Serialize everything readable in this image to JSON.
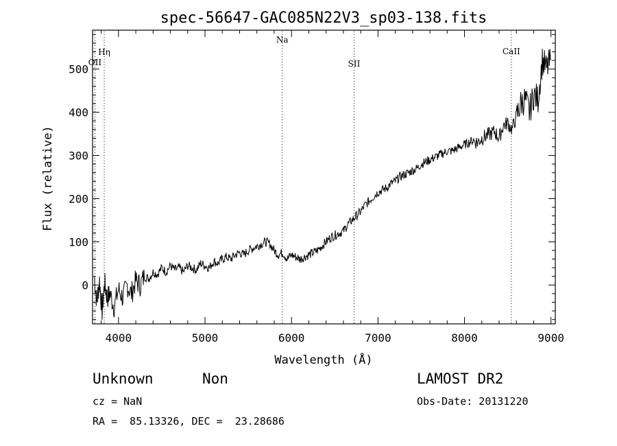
{
  "chart_data": {
    "type": "line",
    "title": "spec-56647-GAC085N22V3_sp03-138.fits",
    "xlabel": "Wavelength (Å)",
    "ylabel": "Flux (relative)",
    "xlim": [
      3700,
      9050
    ],
    "ylim": [
      -90,
      590
    ],
    "x_ticks": [
      4000,
      5000,
      6000,
      7000,
      8000,
      9000
    ],
    "y_ticks": [
      0,
      100,
      200,
      300,
      400,
      500
    ],
    "series": [
      {
        "x": [
          3720,
          3750,
          3780,
          3810,
          3840,
          3870,
          3900,
          3950,
          4000,
          4050,
          4100,
          4150,
          4200,
          4250,
          4300,
          4350,
          4400,
          4450,
          4500,
          4550,
          4600,
          4650,
          4700,
          4750,
          4800,
          4850,
          4900,
          4950,
          5000,
          5050,
          5100,
          5150,
          5200,
          5250,
          5300,
          5350,
          5400,
          5450,
          5500,
          5550,
          5600,
          5650,
          5700,
          5750,
          5800,
          5850,
          5900,
          5950,
          6000,
          6050,
          6100,
          6150,
          6200,
          6250,
          6300,
          6350,
          6400,
          6450,
          6500,
          6550,
          6600,
          6650,
          6700,
          6750,
          6800,
          6850,
          6900,
          6950,
          7000,
          7050,
          7100,
          7150,
          7200,
          7250,
          7300,
          7350,
          7400,
          7450,
          7500,
          7550,
          7600,
          7650,
          7700,
          7750,
          7800,
          7850,
          7900,
          7950,
          8000,
          8050,
          8100,
          8150,
          8200,
          8250,
          8300,
          8350,
          8400,
          8450,
          8500,
          8550,
          8600,
          8650,
          8700,
          8750,
          8800,
          8850,
          8900,
          8950,
          9000
        ],
        "y": [
          20,
          -40,
          10,
          -60,
          5,
          -30,
          -20,
          -50,
          -10,
          -30,
          0,
          -20,
          10,
          0,
          20,
          15,
          30,
          25,
          40,
          30,
          45,
          35,
          40,
          30,
          45,
          40,
          35,
          50,
          45,
          40,
          55,
          50,
          60,
          65,
          60,
          70,
          75,
          70,
          80,
          85,
          90,
          95,
          100,
          95,
          80,
          70,
          75,
          60,
          70,
          65,
          60,
          65,
          70,
          75,
          80,
          90,
          100,
          110,
          115,
          120,
          125,
          140,
          150,
          160,
          170,
          185,
          195,
          205,
          215,
          220,
          225,
          235,
          240,
          250,
          255,
          260,
          265,
          270,
          280,
          285,
          290,
          295,
          300,
          305,
          310,
          310,
          315,
          320,
          325,
          330,
          335,
          330,
          340,
          345,
          350,
          355,
          340,
          370,
          375,
          360,
          390,
          420,
          430,
          400,
          440,
          430,
          520,
          500,
          520
        ]
      }
    ],
    "annotations": [
      {
        "label": "OII",
        "x": 3727
      },
      {
        "label": "Hη",
        "x": 3835
      },
      {
        "label": "Na",
        "x": 5893
      },
      {
        "label": "SII",
        "x": 6724
      },
      {
        "label": "CaII",
        "x": 8542
      }
    ]
  },
  "footer": {
    "object_class": "Unknown",
    "subclass": "Non",
    "survey": "LAMOST DR2",
    "cz": "cz = NaN",
    "obs_date": "Obs-Date: 20131220",
    "radec": "RA =  85.13326, DEC =  23.28686"
  }
}
